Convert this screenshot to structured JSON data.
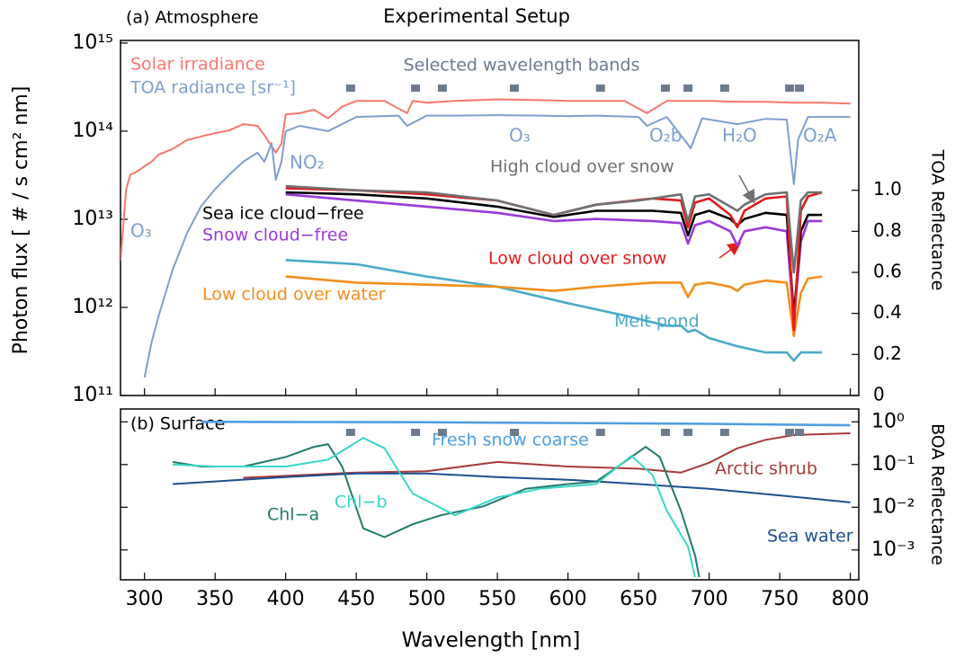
{
  "title": "Experimental Setup",
  "xlabel": "Wavelength [nm]",
  "chart_data": [
    {
      "type": "line",
      "panel_label": "(a) Atmosphere",
      "yscale": "log",
      "ylabel": "Photon flux [ # / s cm² nm]",
      "y2label": "TOA Reflectance",
      "xlim": [
        283,
        806
      ],
      "ylim": [
        100000000000.0,
        1070000000000000.0
      ],
      "y2lim": [
        0,
        1.73
      ],
      "yticks": [
        {
          "value": 100000000000.0,
          "label": "10¹¹"
        },
        {
          "value": 1000000000000.0,
          "label": "10¹²"
        },
        {
          "value": 10000000000000.0,
          "label": "10¹³"
        },
        {
          "value": 100000000000000.0,
          "label": "10¹⁴"
        },
        {
          "value": 1000000000000000.0,
          "label": "10¹⁵"
        }
      ],
      "y2ticks": [
        0,
        0.2,
        0.4,
        0.6,
        0.8,
        {
          "value": 1,
          "label": "1.0"
        }
      ],
      "bands_label": "Selected wavelength bands",
      "bands_color": "#6b7b8c",
      "bands": [
        446,
        492,
        511,
        562,
        623,
        669,
        685,
        711,
        757,
        764
      ],
      "annotations": [
        "O₃",
        "NO₂",
        "O₃",
        "O₂b",
        "H₂O",
        "O₂A"
      ],
      "annotation_color": "#7f9fcf",
      "series": [
        {
          "name": "Solar irradiance",
          "color": "#f8766d",
          "x": [
            283,
            287,
            290,
            295,
            300,
            305,
            310,
            320,
            330,
            340,
            350,
            360,
            370,
            380,
            385,
            393,
            397,
            400,
            410,
            420,
            430,
            440,
            450,
            470,
            486,
            490,
            500,
            520,
            550,
            580,
            600,
            620,
            640,
            656,
            670,
            690,
            700,
            720,
            740,
            760,
            780,
            800
          ],
          "values": [
            3400000000000.0,
            22000000000000.0,
            32000000000000.0,
            35000000000000.0,
            40000000000000.0,
            45000000000000.0,
            54000000000000.0,
            63000000000000.0,
            79000000000000.0,
            87000000000000.0,
            95000000000000.0,
            102000000000000.0,
            120000000000000.0,
            115000000000000.0,
            90000000000000.0,
            57000000000000.0,
            72000000000000.0,
            155000000000000.0,
            160000000000000.0,
            175000000000000.0,
            140000000000000.0,
            190000000000000.0,
            220000000000000.0,
            220000000000000.0,
            160000000000000.0,
            220000000000000.0,
            210000000000000.0,
            220000000000000.0,
            230000000000000.0,
            225000000000000.0,
            220000000000000.0,
            220000000000000.0,
            220000000000000.0,
            160000000000000.0,
            220000000000000.0,
            220000000000000.0,
            220000000000000.0,
            215000000000000.0,
            215000000000000.0,
            210000000000000.0,
            210000000000000.0,
            205000000000000.0
          ]
        },
        {
          "name": "TOA radiance [sr⁻¹]",
          "color": "#7f9fcf",
          "x": [
            300,
            305,
            310,
            320,
            330,
            340,
            350,
            360,
            370,
            380,
            385,
            390,
            393,
            397,
            400,
            410,
            430,
            450,
            480,
            486,
            500,
            520,
            550,
            580,
            600,
            620,
            650,
            656,
            670,
            687,
            695,
            720,
            740,
            755,
            760,
            763,
            770,
            800
          ],
          "values": [
            160000000000.0,
            400000000000.0,
            800000000000.0,
            2700000000000.0,
            6900000000000.0,
            14000000000000.0,
            22000000000000.0,
            32000000000000.0,
            45000000000000.0,
            57000000000000.0,
            45000000000000.0,
            73000000000000.0,
            28000000000000.0,
            45000000000000.0,
            100000000000000.0,
            115000000000000.0,
            100000000000000.0,
            145000000000000.0,
            150000000000000.0,
            115000000000000.0,
            150000000000000.0,
            150000000000000.0,
            152000000000000.0,
            150000000000000.0,
            148000000000000.0,
            150000000000000.0,
            145000000000000.0,
            115000000000000.0,
            145000000000000.0,
            64000000000000.0,
            140000000000000.0,
            120000000000000.0,
            138000000000000.0,
            135000000000000.0,
            25000000000000.0,
            80000000000000.0,
            145000000000000.0,
            145000000000000.0
          ]
        },
        {
          "name": "Melt pond",
          "color": "#4aaac9",
          "axis": "y2",
          "x": [
            400,
            450,
            500,
            550,
            600,
            640,
            670,
            680,
            685,
            690,
            700,
            720,
            740,
            755,
            760,
            765,
            780
          ],
          "values": [
            0.66,
            0.64,
            0.58,
            0.53,
            0.45,
            0.39,
            0.34,
            0.34,
            0.31,
            0.32,
            0.28,
            0.24,
            0.21,
            0.21,
            0.17,
            0.21,
            0.21
          ]
        },
        {
          "name": "Low cloud over water",
          "color": "#f28e1c",
          "axis": "y2",
          "x": [
            400,
            450,
            500,
            550,
            590,
            620,
            660,
            680,
            685,
            690,
            700,
            715,
            720,
            725,
            740,
            755,
            760,
            765,
            770,
            780
          ],
          "values": [
            0.58,
            0.55,
            0.54,
            0.53,
            0.51,
            0.53,
            0.55,
            0.55,
            0.48,
            0.54,
            0.55,
            0.53,
            0.51,
            0.54,
            0.56,
            0.55,
            0.29,
            0.5,
            0.57,
            0.58
          ]
        },
        {
          "name": "Snow cloud−free",
          "color": "#9a3bd8",
          "axis": "y2",
          "x": [
            400,
            450,
            500,
            550,
            590,
            620,
            660,
            680,
            685,
            690,
            700,
            715,
            720,
            725,
            740,
            755,
            760,
            765,
            770,
            780
          ],
          "values": [
            0.98,
            0.95,
            0.92,
            0.89,
            0.85,
            0.86,
            0.85,
            0.84,
            0.74,
            0.83,
            0.85,
            0.8,
            0.73,
            0.8,
            0.82,
            0.8,
            0.36,
            0.75,
            0.85,
            0.85
          ]
        },
        {
          "name": "Sea ice cloud−free",
          "color": "#000000",
          "axis": "y2",
          "x": [
            400,
            450,
            500,
            550,
            590,
            620,
            660,
            680,
            685,
            690,
            700,
            715,
            720,
            725,
            740,
            755,
            760,
            765,
            770,
            780
          ],
          "values": [
            0.99,
            0.98,
            0.96,
            0.92,
            0.87,
            0.9,
            0.9,
            0.89,
            0.78,
            0.88,
            0.9,
            0.86,
            0.83,
            0.86,
            0.89,
            0.88,
            0.39,
            0.8,
            0.88,
            0.88
          ]
        },
        {
          "name": "Low cloud over snow",
          "color": "#e31a1c",
          "axis": "y2",
          "x": [
            400,
            450,
            500,
            550,
            590,
            620,
            660,
            680,
            685,
            690,
            700,
            715,
            720,
            725,
            740,
            755,
            760,
            765,
            770,
            780
          ],
          "values": [
            1.01,
            1.0,
            0.98,
            0.95,
            0.88,
            0.93,
            0.96,
            0.95,
            0.82,
            0.94,
            0.96,
            0.88,
            0.82,
            0.9,
            0.96,
            0.97,
            0.32,
            0.9,
            0.97,
            0.99
          ]
        },
        {
          "name": "High cloud over snow",
          "color": "#707070",
          "axis": "y2",
          "x": [
            400,
            450,
            500,
            550,
            590,
            620,
            650,
            680,
            685,
            690,
            700,
            715,
            720,
            725,
            740,
            755,
            760,
            765,
            770,
            780
          ],
          "values": [
            1.02,
            1.0,
            0.99,
            0.95,
            0.88,
            0.93,
            0.95,
            0.98,
            0.85,
            0.97,
            0.98,
            0.92,
            0.9,
            0.93,
            0.98,
            0.99,
            0.6,
            0.95,
            0.99,
            0.99
          ]
        }
      ]
    },
    {
      "type": "line",
      "panel_label": "(b) Surface",
      "yscale": "log",
      "y2label": "BOA Reflectance",
      "xlim": [
        283,
        806
      ],
      "ylim": [
        0.0002,
        2
      ],
      "xticks": [
        300,
        350,
        400,
        450,
        500,
        550,
        600,
        650,
        700,
        750,
        800
      ],
      "yticks": [
        {
          "value": 0.001,
          "label": "10⁻³"
        },
        {
          "value": 0.01,
          "label": "10⁻²"
        },
        {
          "value": 0.1,
          "label": "10⁻¹"
        },
        {
          "value": 1,
          "label": "10⁰"
        }
      ],
      "series": [
        {
          "name": "Fresh snow coarse",
          "color": "#4e9ee0",
          "x": [
            340,
            500,
            700,
            800
          ],
          "values": [
            1.0,
            0.98,
            0.9,
            0.83
          ]
        },
        {
          "name": "Arctic shrub",
          "color": "#a83a3a",
          "x": [
            370,
            450,
            500,
            550,
            600,
            650,
            680,
            700,
            720,
            740,
            760,
            800
          ],
          "values": [
            0.049,
            0.065,
            0.07,
            0.115,
            0.09,
            0.08,
            0.065,
            0.11,
            0.24,
            0.38,
            0.49,
            0.54
          ]
        },
        {
          "name": "Sea water",
          "color": "#1c4f8f",
          "x": [
            320,
            400,
            450,
            500,
            550,
            600,
            650,
            700,
            750,
            800
          ],
          "values": [
            0.035,
            0.051,
            0.062,
            0.062,
            0.051,
            0.044,
            0.035,
            0.027,
            0.019,
            0.013
          ]
        },
        {
          "name": "Chl−a",
          "color": "#217a6d",
          "x": [
            320,
            340,
            370,
            400,
            420,
            430,
            440,
            455,
            470,
            490,
            510,
            540,
            570,
            600,
            620,
            640,
            655,
            665,
            680,
            690,
            693
          ],
          "values": [
            0.115,
            0.09,
            0.09,
            0.15,
            0.26,
            0.3,
            0.09,
            0.0032,
            0.002,
            0.004,
            0.0065,
            0.0105,
            0.027,
            0.035,
            0.04,
            0.115,
            0.26,
            0.15,
            0.0083,
            0.00075,
            0.00023
          ]
        },
        {
          "name": "Chl−b",
          "color": "#39d6c9",
          "x": [
            320,
            350,
            400,
            430,
            455,
            470,
            490,
            520,
            550,
            580,
            620,
            645,
            660,
            670,
            685,
            690
          ],
          "values": [
            0.1,
            0.09,
            0.09,
            0.13,
            0.42,
            0.24,
            0.021,
            0.0065,
            0.017,
            0.027,
            0.035,
            0.16,
            0.056,
            0.0083,
            0.0012,
            0.00023
          ]
        }
      ]
    }
  ]
}
